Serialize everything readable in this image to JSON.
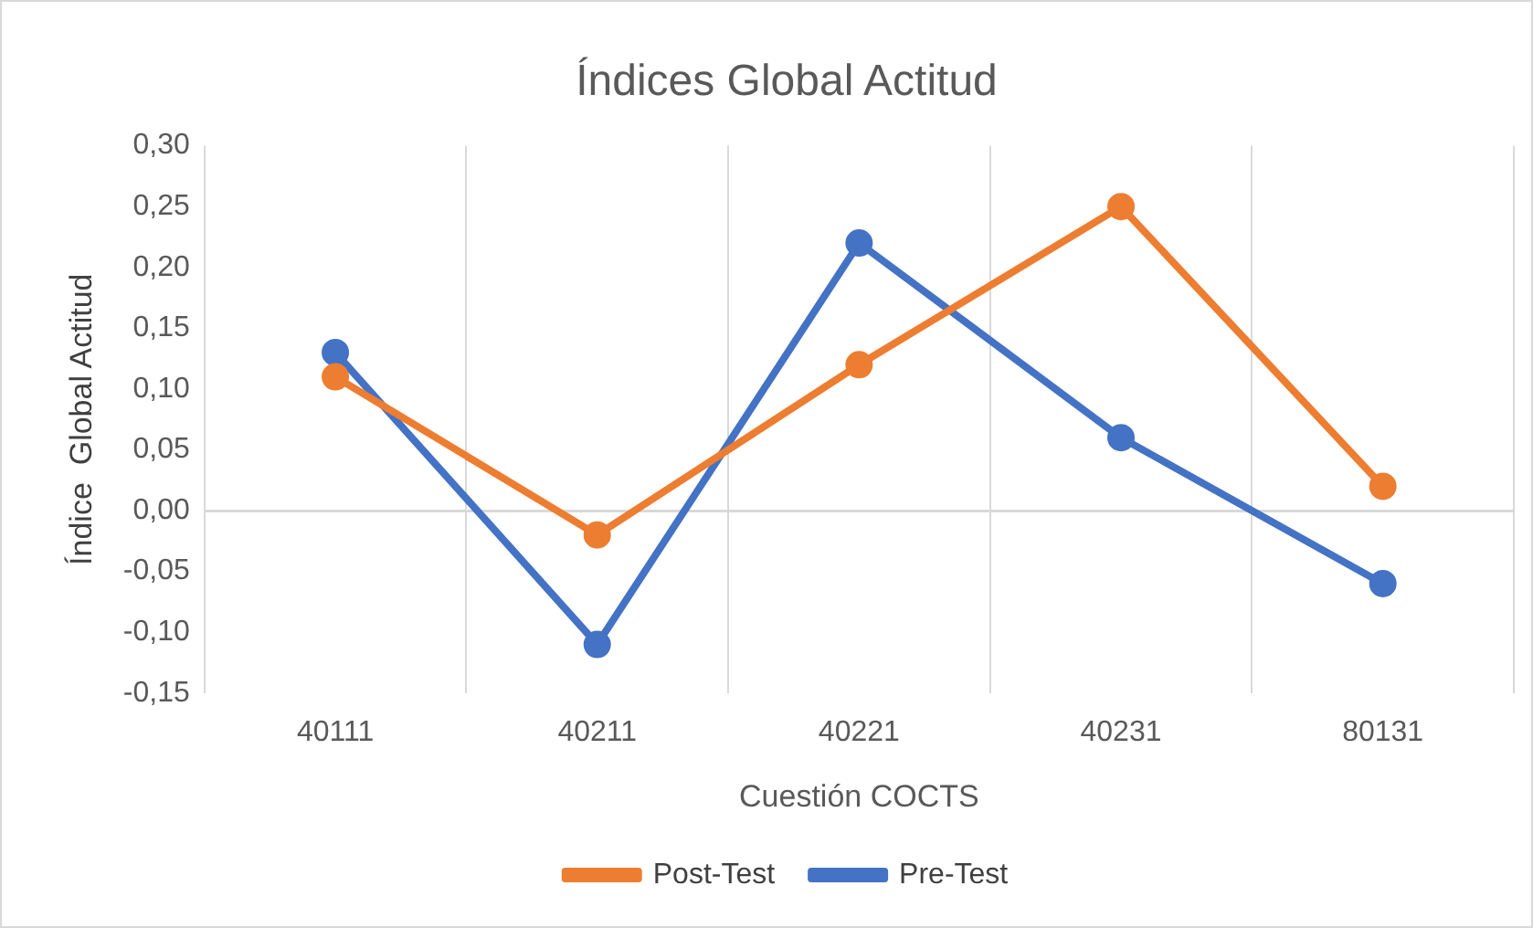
{
  "chart_data": {
    "type": "line",
    "title": "Índices Global Actitud",
    "xlabel": "Cuestión COCTS",
    "ylabel": "Índice  Global Actitud",
    "categories": [
      "40111",
      "40211",
      "40221",
      "40231",
      "80131"
    ],
    "series": [
      {
        "name": "Post-Test",
        "color": "#ed7d31",
        "values": [
          0.11,
          -0.02,
          0.12,
          0.25,
          0.02
        ]
      },
      {
        "name": "Pre-Test",
        "color": "#4472c4",
        "values": [
          0.13,
          -0.11,
          0.22,
          0.06,
          -0.06
        ]
      }
    ],
    "ylim": [
      -0.15,
      0.3
    ],
    "yticks": [
      {
        "value": -0.15,
        "label": "-0,15"
      },
      {
        "value": -0.1,
        "label": "-0,10"
      },
      {
        "value": -0.05,
        "label": "-0,05"
      },
      {
        "value": 0,
        "label": "0,00"
      },
      {
        "value": 0.05,
        "label": "0,05"
      },
      {
        "value": 0.1,
        "label": "0,10"
      },
      {
        "value": 0.15,
        "label": "0,15"
      },
      {
        "value": 0.2,
        "label": "0,20"
      },
      {
        "value": 0.25,
        "label": "0,25"
      },
      {
        "value": 0.3,
        "label": "0,30"
      }
    ],
    "grid": "x",
    "legend": "bottom",
    "marker": "circle",
    "line_style": "solid"
  }
}
